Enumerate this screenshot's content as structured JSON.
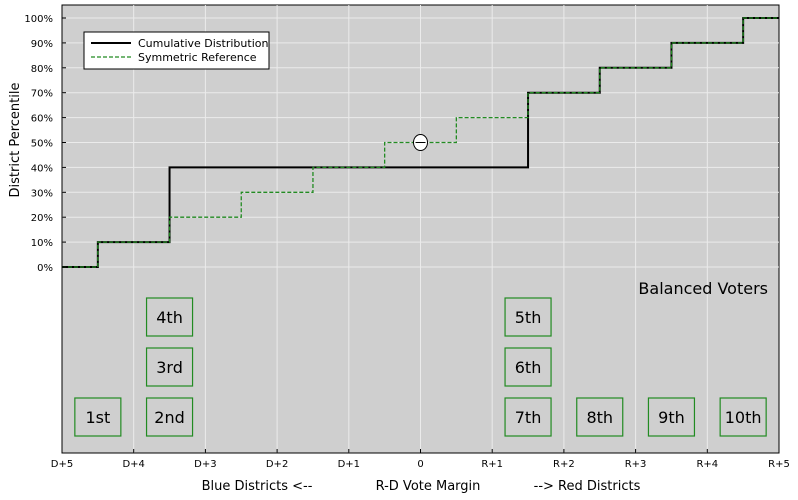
{
  "chart_data": {
    "type": "line",
    "title": "",
    "ylabel": "District Percentile",
    "xlabel_left": "Blue Districts <--",
    "xlabel_center": "R-D Vote Margin",
    "xlabel_right": "--> Red Districts",
    "xlim": [
      -5,
      5
    ],
    "ylim": [
      0,
      100
    ],
    "grid": true,
    "x_ticks": [
      {
        "value": -5,
        "label": "D+5"
      },
      {
        "value": -4,
        "label": "D+4"
      },
      {
        "value": -3,
        "label": "D+3"
      },
      {
        "value": -2,
        "label": "D+2"
      },
      {
        "value": -1,
        "label": "D+1"
      },
      {
        "value": 0,
        "label": "0"
      },
      {
        "value": 1,
        "label": "R+1"
      },
      {
        "value": 2,
        "label": "R+2"
      },
      {
        "value": 3,
        "label": "R+3"
      },
      {
        "value": 4,
        "label": "R+4"
      },
      {
        "value": 5,
        "label": "R+5"
      }
    ],
    "y_ticks": [
      {
        "value": 0,
        "label": "0%"
      },
      {
        "value": 10,
        "label": "10%"
      },
      {
        "value": 20,
        "label": "20%"
      },
      {
        "value": 30,
        "label": "30%"
      },
      {
        "value": 40,
        "label": "40%"
      },
      {
        "value": 50,
        "label": "50%"
      },
      {
        "value": 60,
        "label": "60%"
      },
      {
        "value": 70,
        "label": "70%"
      },
      {
        "value": 80,
        "label": "80%"
      },
      {
        "value": 90,
        "label": "90%"
      },
      {
        "value": 100,
        "label": "100%"
      }
    ],
    "legend_position": "top-left",
    "series": [
      {
        "name": "Cumulative Distribution",
        "style": "solid",
        "color": "#000000",
        "points": [
          [
            -5,
            0
          ],
          [
            -4.5,
            0
          ],
          [
            -4.5,
            10
          ],
          [
            -3.5,
            10
          ],
          [
            -3.5,
            40
          ],
          [
            1.5,
            40
          ],
          [
            1.5,
            70
          ],
          [
            2.5,
            70
          ],
          [
            2.5,
            80
          ],
          [
            3.5,
            80
          ],
          [
            3.5,
            90
          ],
          [
            4.5,
            90
          ],
          [
            4.5,
            100
          ],
          [
            5,
            100
          ]
        ]
      },
      {
        "name": "Symmetric Reference",
        "style": "dashed",
        "color": "#228b22",
        "points": [
          [
            -5,
            0
          ],
          [
            -4.5,
            0
          ],
          [
            -4.5,
            10
          ],
          [
            -3.5,
            10
          ],
          [
            -3.5,
            20
          ],
          [
            -2.5,
            20
          ],
          [
            -2.5,
            30
          ],
          [
            -1.5,
            30
          ],
          [
            -1.5,
            40
          ],
          [
            -0.5,
            40
          ],
          [
            -0.5,
            50
          ],
          [
            0.5,
            50
          ],
          [
            0.5,
            60
          ],
          [
            1.5,
            60
          ],
          [
            1.5,
            70
          ],
          [
            2.5,
            70
          ],
          [
            2.5,
            80
          ],
          [
            3.5,
            80
          ],
          [
            3.5,
            90
          ],
          [
            4.5,
            90
          ],
          [
            4.5,
            100
          ],
          [
            5,
            100
          ]
        ]
      }
    ],
    "marker": {
      "x": 0,
      "y": 50
    },
    "annotation": "Balanced Voters",
    "districts": [
      {
        "label": "1st",
        "x": -4.5,
        "stack": 0
      },
      {
        "label": "2nd",
        "x": -3.5,
        "stack": 0
      },
      {
        "label": "3rd",
        "x": -3.5,
        "stack": 1
      },
      {
        "label": "4th",
        "x": -3.5,
        "stack": 2
      },
      {
        "label": "7th",
        "x": 1.5,
        "stack": 0
      },
      {
        "label": "6th",
        "x": 1.5,
        "stack": 1
      },
      {
        "label": "5th",
        "x": 1.5,
        "stack": 2
      },
      {
        "label": "8th",
        "x": 2.5,
        "stack": 0
      },
      {
        "label": "9th",
        "x": 3.5,
        "stack": 0
      },
      {
        "label": "10th",
        "x": 4.5,
        "stack": 0
      }
    ]
  }
}
